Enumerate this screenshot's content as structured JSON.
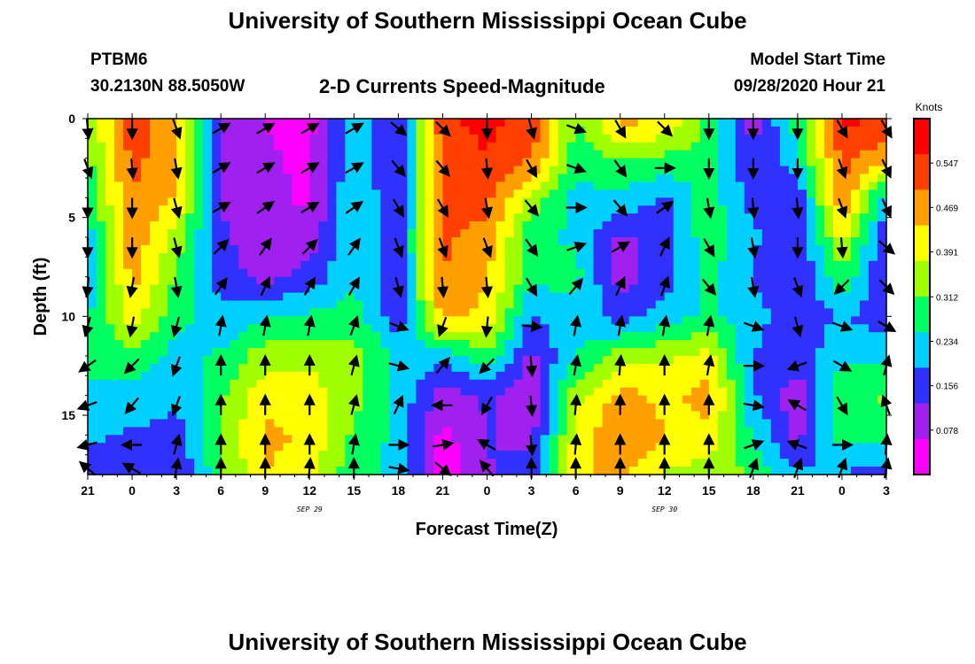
{
  "page": {
    "title_top": "University of Southern Mississippi Ocean Cube",
    "title_bottom": "University of Southern Mississippi Ocean Cube",
    "station": "PTBM6",
    "location": "30.2130N 88.5050W",
    "model_start_label": "Model Start Time",
    "model_start_value": "09/28/2020 Hour 21"
  },
  "chart_data": {
    "type": "heatmap",
    "title": "2-D Currents Speed-Magnitude",
    "xlabel": "Forecast Time(Z)",
    "ylabel": "Depth (ft)",
    "x_tick_labels": [
      "21",
      "0",
      "3",
      "6",
      "9",
      "12",
      "15",
      "18",
      "21",
      "0",
      "3",
      "6",
      "9",
      "12",
      "15",
      "18",
      "21",
      "0",
      "3"
    ],
    "x_date_labels": [
      {
        "label": "SEP 29",
        "at_tick_index": 5
      },
      {
        "label": "SEP 30",
        "at_tick_index": 13
      }
    ],
    "y_tick_values": [
      0,
      5,
      10,
      15
    ],
    "ylim": [
      18,
      0
    ],
    "x_range_hours": [
      0,
      54
    ],
    "colorbar": {
      "title": "Knots",
      "ticks": [
        "0.547",
        "0.469",
        "0.391",
        "0.312",
        "0.234",
        "0.156",
        "0.078"
      ],
      "tick_values": [
        0.547,
        0.469,
        0.391,
        0.312,
        0.234,
        0.156,
        0.078
      ],
      "range": [
        0,
        0.625
      ],
      "colors": [
        "#ff00ff",
        "#a020f0",
        "#3030ff",
        "#00d0ff",
        "#00ff60",
        "#a0ff00",
        "#ffff00",
        "#ffa000",
        "#ff4000",
        "#ff0000"
      ]
    },
    "x_hours": [
      0,
      3,
      6,
      9,
      12,
      15,
      18,
      21,
      24,
      27,
      30,
      33,
      36,
      39,
      42,
      45,
      48,
      51,
      54
    ],
    "depth_ft": [
      0,
      2,
      4,
      6,
      8,
      10,
      12,
      14,
      16,
      18
    ],
    "speed_knots": [
      [
        0.33,
        0.53,
        0.46,
        0.12,
        0.06,
        0.04,
        0.23,
        0.12,
        0.55,
        0.58,
        0.55,
        0.3,
        0.46,
        0.44,
        0.3,
        0.1,
        0.28,
        0.58,
        0.55
      ],
      [
        0.3,
        0.52,
        0.45,
        0.12,
        0.07,
        0.05,
        0.24,
        0.12,
        0.53,
        0.56,
        0.5,
        0.28,
        0.32,
        0.3,
        0.28,
        0.12,
        0.24,
        0.52,
        0.46
      ],
      [
        0.26,
        0.5,
        0.43,
        0.12,
        0.08,
        0.05,
        0.25,
        0.13,
        0.51,
        0.52,
        0.36,
        0.22,
        0.24,
        0.18,
        0.28,
        0.16,
        0.14,
        0.5,
        0.2
      ],
      [
        0.22,
        0.48,
        0.35,
        0.14,
        0.07,
        0.09,
        0.25,
        0.14,
        0.51,
        0.48,
        0.26,
        0.24,
        0.11,
        0.14,
        0.3,
        0.2,
        0.13,
        0.4,
        0.13
      ],
      [
        0.2,
        0.46,
        0.3,
        0.16,
        0.1,
        0.15,
        0.24,
        0.14,
        0.5,
        0.44,
        0.27,
        0.27,
        0.1,
        0.16,
        0.26,
        0.18,
        0.12,
        0.3,
        0.12
      ],
      [
        0.24,
        0.4,
        0.28,
        0.2,
        0.24,
        0.26,
        0.28,
        0.15,
        0.46,
        0.42,
        0.18,
        0.23,
        0.16,
        0.22,
        0.26,
        0.22,
        0.13,
        0.2,
        0.14
      ],
      [
        0.28,
        0.3,
        0.22,
        0.26,
        0.35,
        0.36,
        0.34,
        0.23,
        0.2,
        0.3,
        0.11,
        0.25,
        0.34,
        0.36,
        0.4,
        0.18,
        0.16,
        0.23,
        0.24
      ],
      [
        0.22,
        0.23,
        0.2,
        0.3,
        0.42,
        0.4,
        0.34,
        0.23,
        0.1,
        0.13,
        0.08,
        0.35,
        0.46,
        0.42,
        0.46,
        0.2,
        0.08,
        0.3,
        0.32
      ],
      [
        0.2,
        0.18,
        0.16,
        0.32,
        0.45,
        0.43,
        0.3,
        0.23,
        0.04,
        0.13,
        0.1,
        0.4,
        0.5,
        0.44,
        0.42,
        0.24,
        0.1,
        0.28,
        0.28
      ],
      [
        0.14,
        0.13,
        0.12,
        0.3,
        0.44,
        0.4,
        0.26,
        0.24,
        0.02,
        0.12,
        0.15,
        0.42,
        0.46,
        0.36,
        0.35,
        0.3,
        0.2,
        0.18,
        0.16
      ]
    ],
    "vector_depths_ft": [
      0.5,
      2.5,
      4.5,
      6.5,
      8.5,
      10.5,
      12.5,
      14.5,
      16.5,
      17.7
    ],
    "vector_directions_deg": [
      [
        175,
        180,
        160,
        60,
        60,
        60,
        60,
        130,
        135,
        180,
        165,
        110,
        150,
        135,
        180,
        180,
        180,
        150,
        150
      ],
      [
        160,
        175,
        170,
        60,
        60,
        60,
        60,
        140,
        140,
        175,
        150,
        110,
        145,
        90,
        180,
        180,
        180,
        160,
        155
      ],
      [
        180,
        180,
        165,
        60,
        55,
        60,
        55,
        150,
        150,
        170,
        140,
        90,
        140,
        55,
        170,
        175,
        175,
        160,
        155
      ],
      [
        180,
        180,
        165,
        45,
        35,
        45,
        35,
        160,
        160,
        160,
        145,
        70,
        60,
        25,
        150,
        170,
        180,
        175,
        130
      ],
      [
        185,
        190,
        170,
        35,
        25,
        30,
        30,
        165,
        175,
        175,
        150,
        40,
        25,
        20,
        140,
        170,
        160,
        225,
        135
      ],
      [
        195,
        190,
        195,
        10,
        10,
        10,
        20,
        110,
        200,
        185,
        95,
        10,
        10,
        10,
        10,
        110,
        165,
        110,
        120
      ],
      [
        235,
        225,
        200,
        0,
        0,
        0,
        15,
        105,
        40,
        225,
        175,
        10,
        5,
        0,
        10,
        90,
        250,
        120,
        15
      ],
      [
        250,
        220,
        200,
        0,
        0,
        0,
        15,
        25,
        270,
        210,
        175,
        5,
        0,
        0,
        0,
        100,
        300,
        150,
        340
      ],
      [
        255,
        270,
        15,
        0,
        0,
        0,
        10,
        90,
        80,
        300,
        175,
        5,
        0,
        0,
        0,
        70,
        290,
        90,
        5
      ],
      [
        310,
        300,
        10,
        0,
        0,
        5,
        0,
        100,
        130,
        320,
        0,
        0,
        0,
        0,
        0,
        20,
        20,
        20,
        10
      ]
    ]
  }
}
